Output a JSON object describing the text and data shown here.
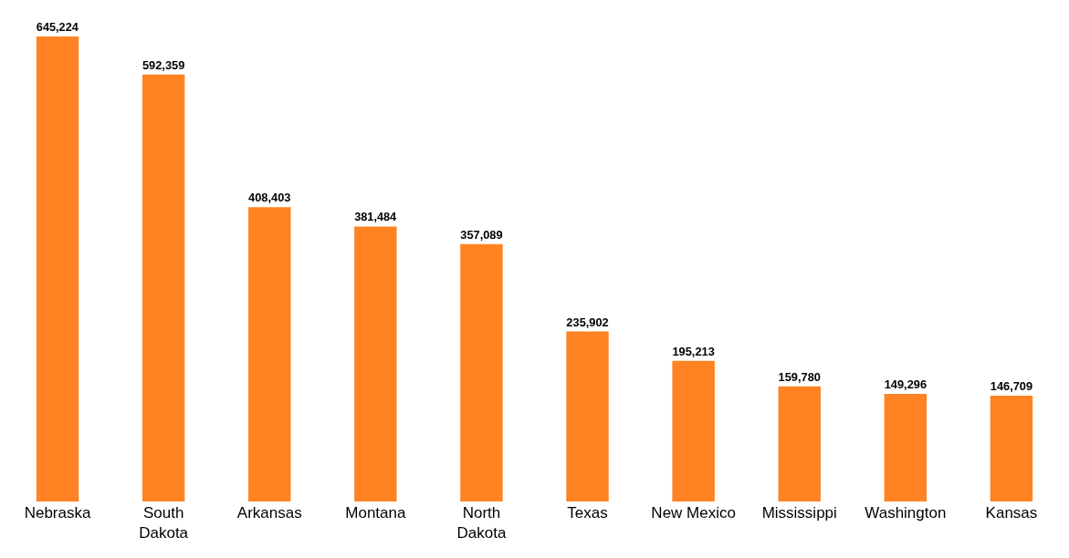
{
  "chart_data": {
    "type": "bar",
    "categories": [
      "Nebraska",
      "South Dakota",
      "Arkansas",
      "Montana",
      "North Dakota",
      "Texas",
      "New Mexico",
      "Mississippi",
      "Washington",
      "Kansas"
    ],
    "values": [
      645224,
      592359,
      408403,
      381484,
      357089,
      235902,
      195213,
      159780,
      149296,
      146709
    ],
    "value_labels": [
      "645,224",
      "592,359",
      "408,403",
      "381,484",
      "357,089",
      "235,902",
      "195,213",
      "159,780",
      "149,296",
      "146,709"
    ],
    "color": "#ff8322"
  }
}
